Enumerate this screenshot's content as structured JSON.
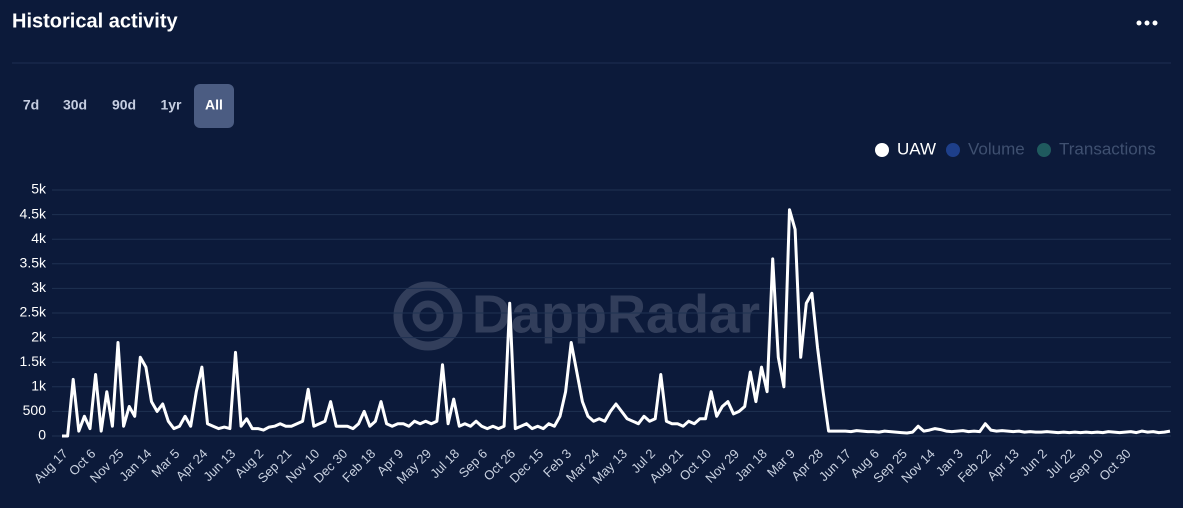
{
  "header": {
    "title": "Historical activity"
  },
  "ranges": {
    "buttons": [
      "7d",
      "30d",
      "90d",
      "1yr",
      "All"
    ],
    "active": "All"
  },
  "watermark": "DappRadar",
  "legend_inactive": [
    {
      "name": "Volume",
      "color": "#1e3f8a"
    },
    {
      "name": "Transactions",
      "color": "#1f5a5e"
    }
  ],
  "chart_data": {
    "type": "line",
    "categories": [
      "Aug 17",
      null,
      null,
      null,
      null,
      "Oct 6",
      null,
      null,
      null,
      null,
      "Nov 25",
      null,
      null,
      null,
      null,
      "Jan 14",
      null,
      null,
      null,
      null,
      "Mar 5",
      null,
      null,
      null,
      null,
      "Apr 24",
      null,
      null,
      null,
      null,
      "Jun 13",
      null,
      null,
      null,
      null,
      "Aug 2",
      null,
      null,
      null,
      null,
      "Sep 21",
      null,
      null,
      null,
      null,
      "Nov 10",
      null,
      null,
      null,
      null,
      "Dec 30",
      null,
      null,
      null,
      null,
      "Feb 18",
      null,
      null,
      null,
      null,
      "Apr 9",
      null,
      null,
      null,
      null,
      "May 29",
      null,
      null,
      null,
      null,
      "Jul 18",
      null,
      null,
      null,
      null,
      "Sep 6",
      null,
      null,
      null,
      null,
      "Oct 26",
      null,
      null,
      null,
      null,
      "Dec 15",
      null,
      null,
      null,
      null,
      "Feb 3",
      null,
      null,
      null,
      null,
      "Mar 24",
      null,
      null,
      null,
      null,
      "May 13",
      null,
      null,
      null,
      null,
      "Jul 2",
      null,
      null,
      null,
      null,
      "Aug 21",
      null,
      null,
      null,
      null,
      "Oct 10",
      null,
      null,
      null,
      null,
      "Nov 29",
      null,
      null,
      null,
      null,
      "Jan 18",
      null,
      null,
      null,
      null,
      "Mar 9",
      null,
      null,
      null,
      null,
      "Apr 28",
      null,
      null,
      null,
      null,
      "Jun 17",
      null,
      null,
      null,
      null,
      "Aug 6",
      null,
      null,
      null,
      null,
      "Sep 25",
      null,
      null,
      null,
      null,
      "Nov 14",
      null,
      null,
      null,
      null,
      "Jan 3",
      null,
      null,
      null,
      null,
      "Feb 22",
      null,
      null,
      null,
      null,
      "Apr 13",
      null,
      null,
      null,
      null,
      "Jun 2",
      null,
      null,
      null,
      null,
      "Jul 22",
      null,
      null,
      null,
      null,
      "Sep 10",
      null,
      null,
      null,
      null,
      "Oct 30",
      null,
      null,
      null,
      null,
      null,
      null,
      null,
      null
    ],
    "series": [
      {
        "name": "UAW",
        "color": "#ffffff",
        "values": [
          0,
          0,
          1150,
          100,
          400,
          150,
          1250,
          100,
          900,
          200,
          1900,
          200,
          600,
          400,
          1600,
          1400,
          700,
          500,
          650,
          300,
          150,
          200,
          400,
          200,
          900,
          1400,
          250,
          200,
          150,
          180,
          150,
          1700,
          200,
          350,
          150,
          150,
          120,
          180,
          200,
          250,
          200,
          200,
          250,
          300,
          950,
          200,
          250,
          300,
          700,
          200,
          200,
          200,
          150,
          250,
          500,
          200,
          300,
          700,
          250,
          200,
          250,
          250,
          200,
          300,
          250,
          300,
          250,
          300,
          1450,
          250,
          750,
          200,
          250,
          200,
          300,
          200,
          150,
          200,
          150,
          200,
          2700,
          150,
          200,
          250,
          150,
          200,
          150,
          250,
          200,
          400,
          900,
          1900,
          1300,
          700,
          400,
          300,
          350,
          300,
          500,
          650,
          500,
          350,
          300,
          250,
          400,
          300,
          350,
          1250,
          300,
          250,
          250,
          200,
          300,
          250,
          350,
          350,
          900,
          400,
          600,
          700,
          450,
          500,
          600,
          1300,
          700,
          1400,
          900,
          3600,
          1600,
          1000,
          4600,
          4200,
          1600,
          2700,
          2900,
          1800,
          900,
          100,
          100,
          100,
          100,
          90,
          110,
          100,
          90,
          90,
          80,
          100,
          90,
          80,
          70,
          60,
          80,
          200,
          100,
          120,
          150,
          130,
          100,
          90,
          100,
          110,
          90,
          100,
          90,
          250,
          120,
          100,
          110,
          100,
          90,
          100,
          80,
          90,
          80,
          80,
          90,
          80,
          70,
          80,
          70,
          80,
          70,
          80,
          70,
          80,
          70,
          90,
          80,
          70,
          80,
          90,
          70,
          100,
          80,
          90,
          70,
          80,
          100
        ]
      }
    ],
    "ylim": [
      0,
      5000
    ],
    "yticks": [
      0,
      500,
      {
        "value": 1000,
        "label": "1k"
      },
      {
        "value": 1500,
        "label": "1.5k"
      },
      {
        "value": 2000,
        "label": "2k"
      },
      {
        "value": 2500,
        "label": "2.5k"
      },
      {
        "value": 3000,
        "label": "3k"
      },
      {
        "value": 3500,
        "label": "3.5k"
      },
      {
        "value": 4000,
        "label": "4k"
      },
      {
        "value": 4500,
        "label": "4.5k"
      },
      {
        "value": 5000,
        "label": "5k"
      }
    ],
    "grid": true
  }
}
